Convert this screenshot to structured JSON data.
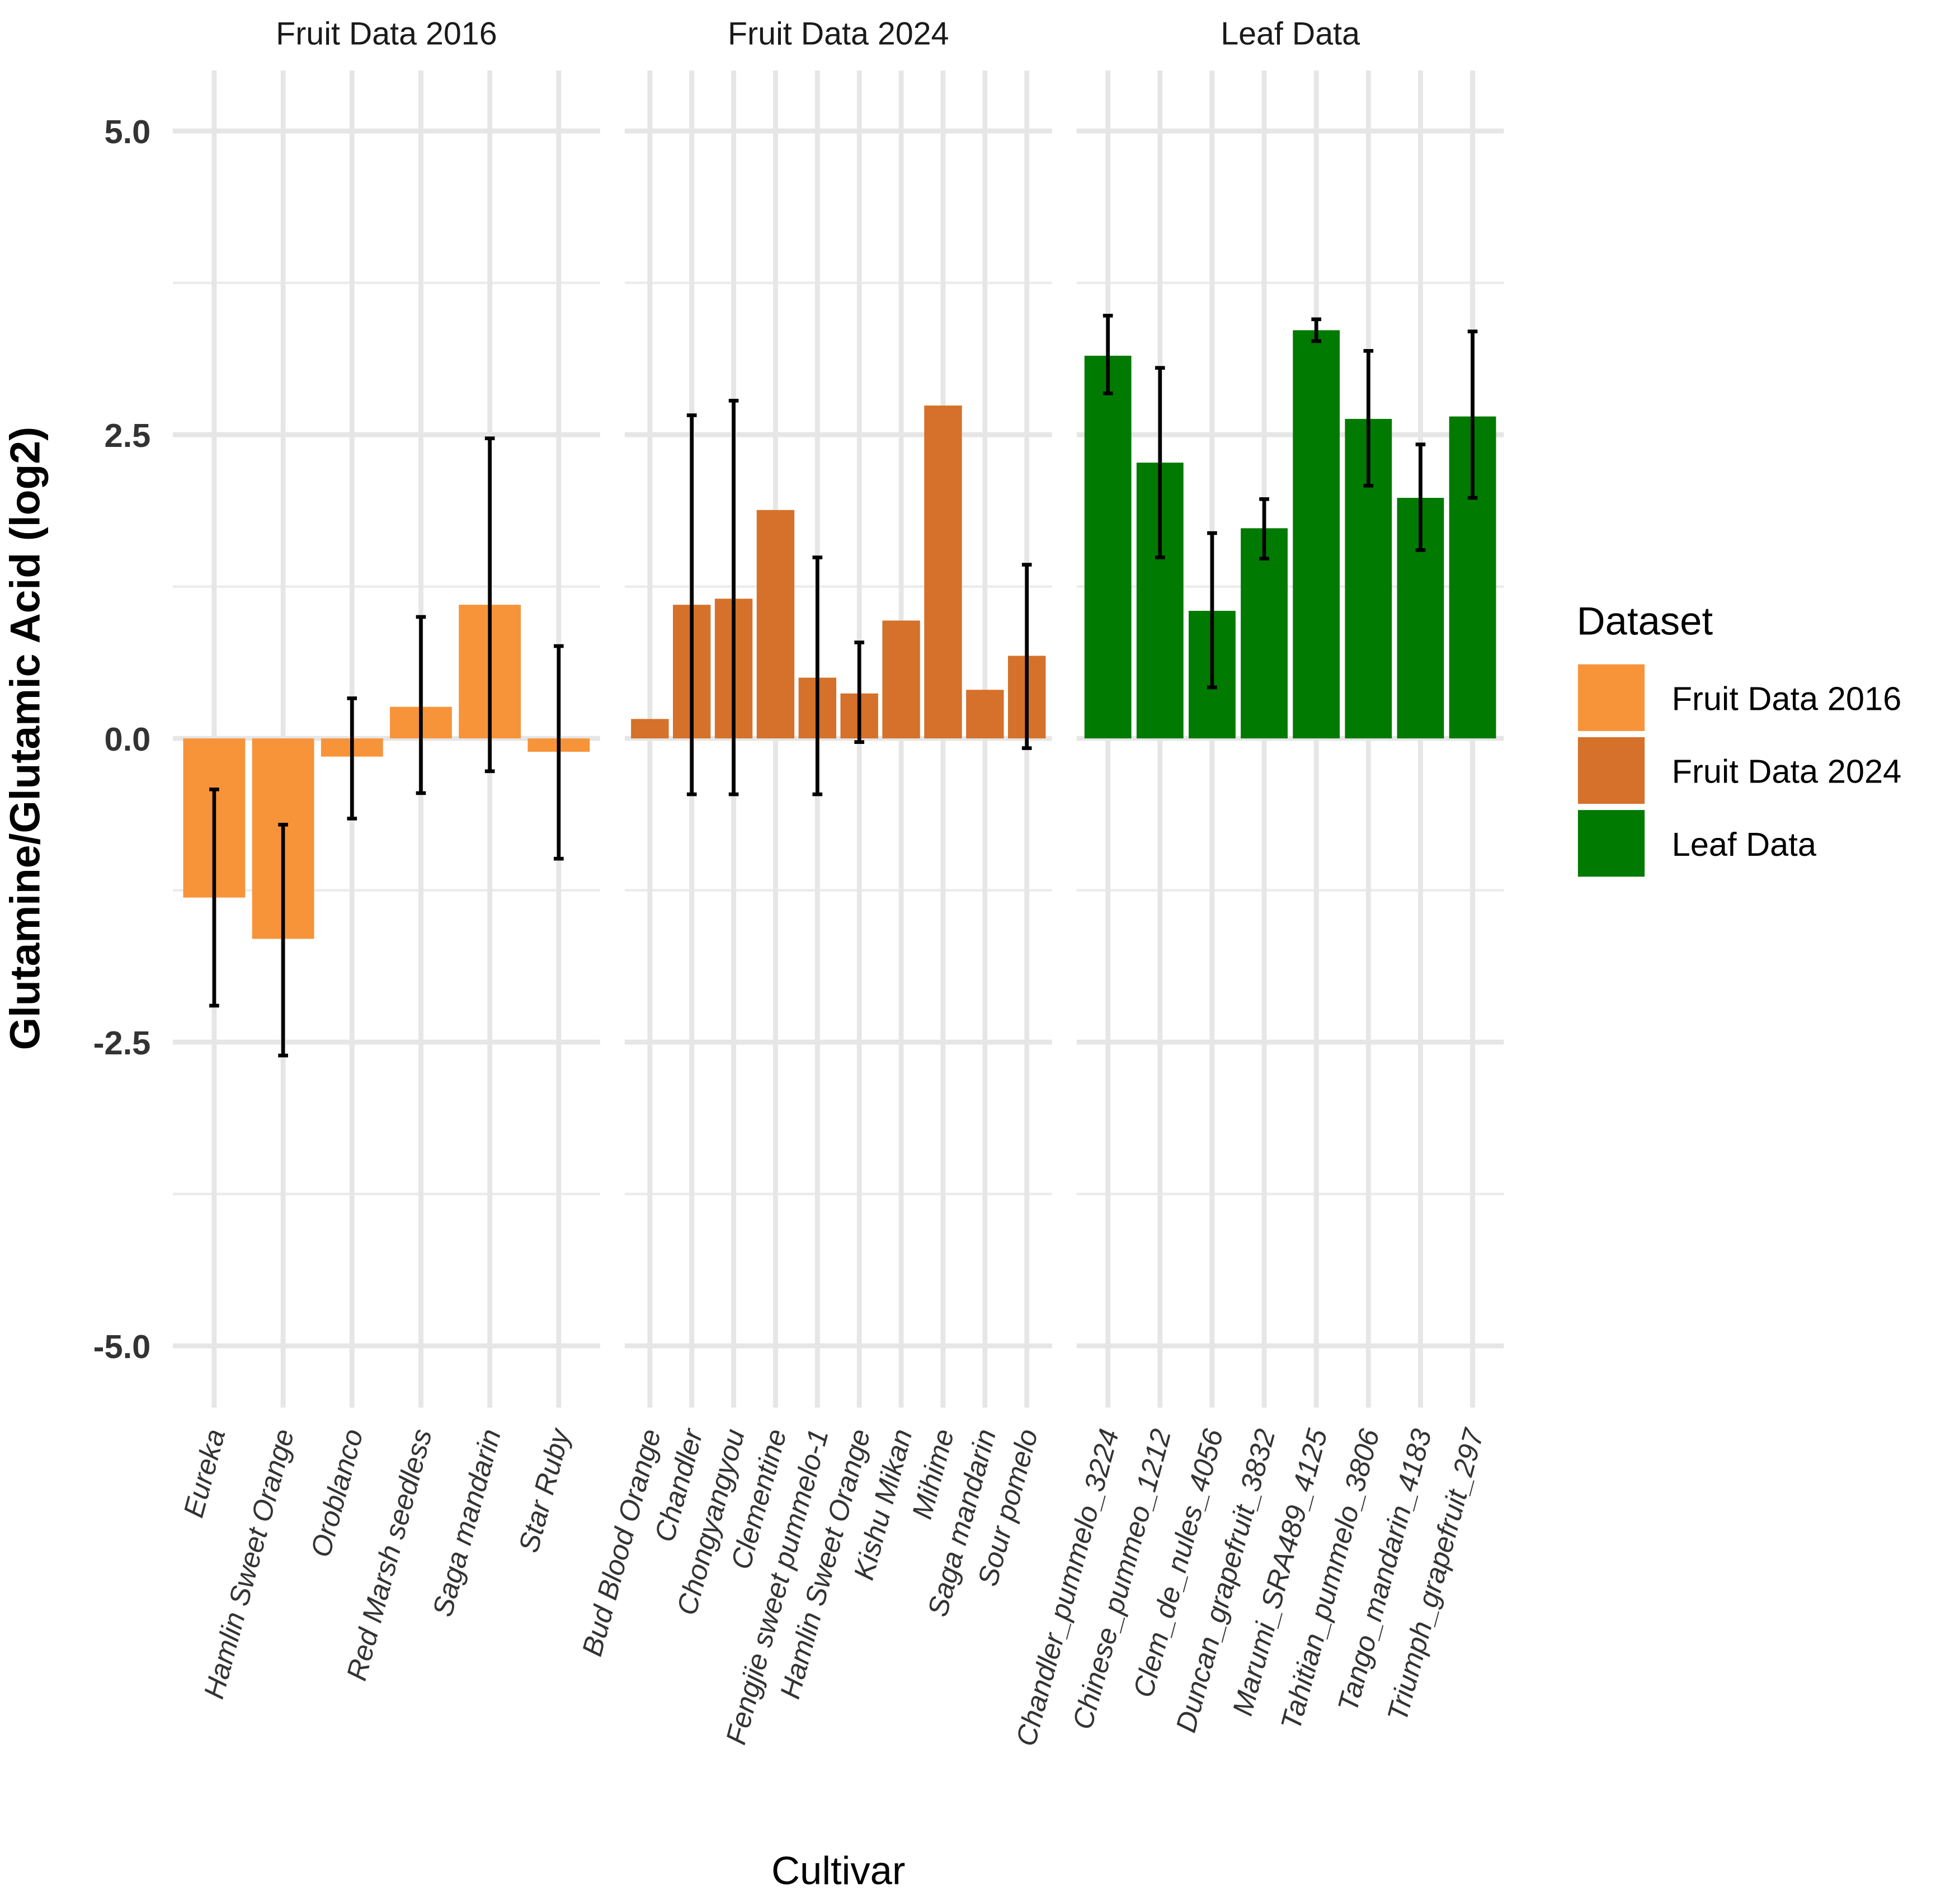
{
  "chart_data": {
    "type": "bar",
    "title": "",
    "xlabel": "Cultivar",
    "ylabel": "Glutamine/Glutamic Acid (log2)",
    "ylim": [
      -5.5,
      5.5
    ],
    "yticks": [
      "5.0",
      "2.5",
      "0.0",
      "-2.5",
      "-5.0"
    ],
    "ytick_values": [
      5,
      2.5,
      0,
      -2.5,
      -5
    ],
    "grid": true,
    "legend": {
      "title": "Dataset",
      "placement": "right",
      "entries": [
        {
          "label": "Fruit Data 2016",
          "color": "#F7943A"
        },
        {
          "label": "Fruit Data 2024",
          "color": "#D5712A"
        },
        {
          "label": "Leaf Data",
          "color": "#007A00"
        }
      ]
    },
    "panels": [
      {
        "title": "Fruit Data 2016",
        "color": "#F7943A",
        "categories": [
          "Eureka",
          "Hamlin Sweet Orange",
          "Oroblanco",
          "Red Marsh seedless",
          "Saga mandarin",
          "Star Ruby"
        ],
        "values": [
          -1.31,
          -1.65,
          -0.15,
          0.26,
          1.1,
          -0.11
        ],
        "err_low": [
          -2.2,
          -2.61,
          -0.66,
          -0.45,
          -0.27,
          -0.99
        ],
        "err_high": [
          -0.42,
          -0.71,
          0.33,
          1.0,
          2.47,
          0.76
        ]
      },
      {
        "title": "Fruit Data 2024",
        "color": "#D5712A",
        "categories": [
          "Bud Blood Orange",
          "Chandler",
          "Chongyangyou",
          "Clementine",
          "Fengjie sweet pummelo-1",
          "Hamlin Sweet Orange",
          "Kishu Mikan",
          "Mihime",
          "Saga mandarin",
          "Sour pomelo"
        ],
        "values": [
          0.16,
          1.1,
          1.15,
          1.88,
          0.5,
          0.37,
          0.97,
          2.74,
          0.4,
          0.68
        ],
        "err_low": [
          null,
          -0.46,
          -0.46,
          null,
          -0.46,
          -0.03,
          null,
          null,
          null,
          -0.08
        ],
        "err_high": [
          null,
          2.66,
          2.78,
          null,
          1.49,
          0.79,
          null,
          null,
          null,
          1.43
        ]
      },
      {
        "title": "Leaf Data",
        "color": "#007A00",
        "categories": [
          "Chandler_pummelo_3224",
          "Chinese_pummeo_1212",
          "Clem_de_nules_4056",
          "Duncan_grapefruit_3832",
          "Marumi_SRA489_4125",
          "Tahitian_pummelo_3806",
          "Tango_mandarin_4183",
          "Triumph_grapefruit_297"
        ],
        "values": [
          3.15,
          2.27,
          1.05,
          1.73,
          3.36,
          2.63,
          1.98,
          2.65
        ],
        "err_low": [
          2.84,
          1.49,
          0.42,
          1.48,
          3.27,
          2.08,
          1.55,
          1.98
        ],
        "err_high": [
          3.48,
          3.05,
          1.69,
          1.97,
          3.45,
          3.19,
          2.42,
          3.35
        ]
      }
    ]
  }
}
